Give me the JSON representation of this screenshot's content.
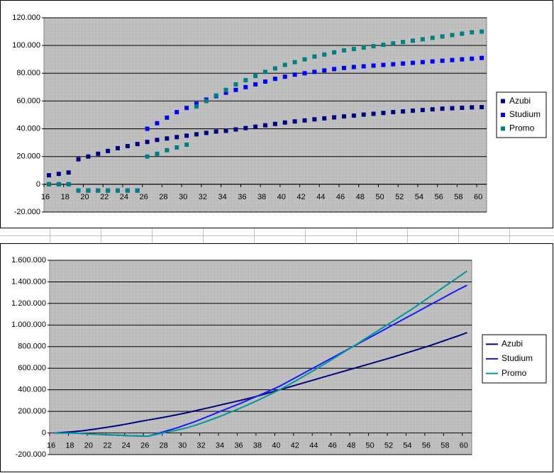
{
  "chart_data": [
    {
      "type": "scatter",
      "legend": "right",
      "grid": true,
      "categories": [
        16,
        null,
        18,
        null,
        20,
        null,
        22,
        null,
        24,
        null,
        26,
        null,
        28,
        null,
        30,
        null,
        32,
        null,
        34,
        null,
        36,
        null,
        38,
        null,
        40,
        null,
        42,
        null,
        44,
        null,
        46,
        null,
        48,
        null,
        50,
        null,
        52,
        null,
        54,
        null,
        56,
        null,
        58,
        null,
        60
      ],
      "ylim": [
        -20000,
        120000
      ],
      "yticks": [
        {
          "value": -20000,
          "label": "-20.000"
        },
        0,
        {
          "value": 20000,
          "label": "20.000"
        },
        {
          "value": 40000,
          "label": "40.000"
        },
        {
          "value": 60000,
          "label": "60.000"
        },
        {
          "value": 80000,
          "label": "80.000"
        },
        {
          "value": 100000,
          "label": "100.000"
        },
        {
          "value": 120000,
          "label": "120.000"
        }
      ],
      "series": [
        {
          "name": "Azubi",
          "color": "#000080",
          "values": [
            6500,
            7500,
            8500,
            18000,
            20000,
            22000,
            24000,
            26000,
            27500,
            29000,
            30500,
            32000,
            33000,
            34000,
            35000,
            36000,
            37000,
            38000,
            38500,
            39500,
            40500,
            41500,
            42500,
            43500,
            44500,
            45300,
            46000,
            46800,
            47500,
            48200,
            48900,
            49500,
            50200,
            50800,
            51400,
            52000,
            52500,
            53000,
            53500,
            54000,
            54500,
            54800,
            55100,
            55400,
            55600
          ]
        },
        {
          "name": "Studium",
          "color": "#0000ff",
          "values": [
            0,
            0,
            0,
            -4500,
            -4500,
            -4500,
            -4500,
            -4500,
            -4500,
            -4500,
            40000,
            44000,
            48000,
            52000,
            55000,
            58000,
            61000,
            63500,
            66000,
            68000,
            70000,
            72000,
            74000,
            76000,
            77500,
            79000,
            80000,
            81000,
            82000,
            83000,
            83800,
            84500,
            85000,
            85500,
            86000,
            86500,
            87000,
            87500,
            88000,
            88500,
            89000,
            89500,
            90000,
            90500,
            91000
          ]
        },
        {
          "name": "Promo",
          "color": "#008080",
          "values": [
            0,
            0,
            0,
            -4500,
            -4500,
            -4500,
            -4500,
            -4500,
            -4500,
            -4500,
            20000,
            22000,
            24500,
            26500,
            28500,
            56000,
            60000,
            64000,
            68000,
            72000,
            75000,
            78000,
            81000,
            83500,
            86000,
            88000,
            90000,
            92000,
            93500,
            95000,
            96500,
            97500,
            98500,
            99500,
            100500,
            101500,
            102500,
            103500,
            104500,
            105500,
            106500,
            107500,
            108500,
            109500,
            110000
          ]
        }
      ]
    },
    {
      "type": "line",
      "legend": "right",
      "grid": true,
      "categories": [
        16,
        null,
        18,
        null,
        20,
        null,
        22,
        null,
        24,
        null,
        26,
        null,
        28,
        null,
        30,
        null,
        32,
        null,
        34,
        null,
        36,
        null,
        38,
        null,
        40,
        null,
        42,
        null,
        44,
        null,
        46,
        null,
        48,
        null,
        50,
        null,
        52,
        null,
        54,
        null,
        56,
        null,
        58,
        null,
        60
      ],
      "ylim": [
        -200000,
        1600000
      ],
      "yticks": [
        {
          "value": -200000,
          "label": "-200.000"
        },
        0,
        {
          "value": 200000,
          "label": "200.000"
        },
        {
          "value": 400000,
          "label": "400.000"
        },
        {
          "value": 600000,
          "label": "600.000"
        },
        {
          "value": 800000,
          "label": "800.000"
        },
        {
          "value": 1000000,
          "label": "1.000.000"
        },
        {
          "value": 1200000,
          "label": "1.200.000"
        },
        {
          "value": 1400000,
          "label": "1.400.000"
        },
        {
          "value": 1600000,
          "label": "1.600.000"
        }
      ],
      "series": [
        {
          "name": "Azubi",
          "color": "#000080",
          "values": [
            0,
            5000,
            12000,
            20000,
            32000,
            45000,
            58000,
            72000,
            88000,
            105000,
            120000,
            135000,
            151000,
            168000,
            185000,
            205000,
            225000,
            245000,
            265000,
            285000,
            305000,
            327000,
            350000,
            375000,
            400000,
            425000,
            450000,
            475000,
            500000,
            525000,
            550000,
            575000,
            600000,
            625000,
            650000,
            675000,
            700000,
            727000,
            754000,
            781000,
            808000,
            838000,
            868000,
            898000,
            930000
          ]
        },
        {
          "name": "Studium",
          "color": "#1a1aff",
          "values": [
            0,
            0,
            0,
            -5000,
            -10000,
            -14000,
            -18000,
            -22000,
            -26000,
            -28000,
            -30000,
            -5000,
            20000,
            45000,
            75000,
            105000,
            140000,
            175000,
            210000,
            245000,
            280000,
            318000,
            355000,
            393000,
            432000,
            479000,
            526000,
            573000,
            620000,
            667000,
            714000,
            761000,
            808000,
            855000,
            902000,
            949000,
            996000,
            1043000,
            1090000,
            1137000,
            1184000,
            1231000,
            1278000,
            1325000,
            1368000
          ]
        },
        {
          "name": "Promo",
          "color": "#009999",
          "values": [
            0,
            0,
            0,
            -5000,
            -10000,
            -14000,
            -18000,
            -22000,
            -26000,
            -28000,
            -30000,
            -10000,
            8000,
            25000,
            45000,
            70000,
            100000,
            132000,
            165000,
            200000,
            237000,
            275000,
            315000,
            357000,
            400000,
            447000,
            496000,
            546000,
            597000,
            649000,
            702000,
            756000,
            810000,
            865000,
            920000,
            975000,
            1030000,
            1085000,
            1140000,
            1200000,
            1260000,
            1320000,
            1380000,
            1440000,
            1500000
          ]
        }
      ]
    }
  ]
}
